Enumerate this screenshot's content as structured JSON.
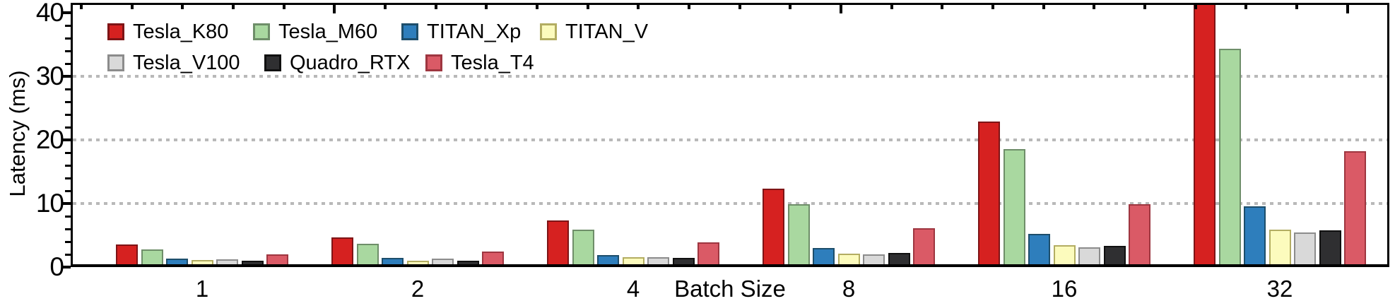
{
  "chart": {
    "ylabel": "Latency (ms)",
    "xlabel": "Batch Size"
  },
  "chart_data": {
    "type": "bar",
    "title": "",
    "xlabel": "Batch Size",
    "ylabel": "Latency (ms)",
    "categories": [
      "1",
      "2",
      "4",
      "8",
      "16",
      "32"
    ],
    "series": [
      {
        "name": "Tesla_K80",
        "fill": "#d62120",
        "edge": "#7e1416",
        "values": [
          3.5,
          4.7,
          7.3,
          12.3,
          22.9,
          42.0
        ]
      },
      {
        "name": "Tesla_M60",
        "fill": "#a9d8a0",
        "edge": "#6e8e69",
        "values": [
          2.8,
          3.7,
          5.9,
          9.9,
          18.5,
          34.3
        ]
      },
      {
        "name": "TITAN_Xp",
        "fill": "#2e7ebc",
        "edge": "#1d4e6b",
        "values": [
          1.3,
          1.4,
          1.9,
          3.0,
          5.2,
          9.6
        ]
      },
      {
        "name": "TITAN_V",
        "fill": "#fcfbbd",
        "edge": "#b3ad62",
        "values": [
          1.1,
          1.0,
          1.5,
          2.1,
          3.4,
          5.9
        ]
      },
      {
        "name": "Tesla_V100",
        "fill": "#d9d9d9",
        "edge": "#8c8c8c",
        "values": [
          1.2,
          1.3,
          1.5,
          2.0,
          3.1,
          5.4
        ]
      },
      {
        "name": "Quadro_RTX",
        "fill": "#2f2f31",
        "edge": "#101010",
        "values": [
          1.0,
          1.0,
          1.4,
          2.2,
          3.3,
          5.8
        ]
      },
      {
        "name": "Tesla_T4",
        "fill": "#da5a66",
        "edge": "#9e3640",
        "values": [
          2.0,
          2.4,
          3.9,
          6.1,
          9.9,
          18.2
        ]
      }
    ],
    "ylim": [
      0,
      41.6
    ],
    "yticks": [
      0,
      10,
      20,
      30,
      40
    ],
    "ytick_labels": [
      "0",
      "10",
      "20",
      "30",
      "40"
    ],
    "minor_ytick_step": 2,
    "gridline_values": [
      10,
      20,
      30
    ],
    "grid_style": "horizontal dotted light-gray at 10/20/30",
    "legend_rows": [
      [
        "Tesla_K80",
        "Tesla_M60",
        "TITAN_Xp",
        "TITAN_V"
      ],
      [
        "Tesla_V100",
        "Quadro_RTX",
        "Tesla_T4"
      ]
    ],
    "legend_position": "inside top-left, no frame",
    "annotations": "Tesla_K80 bar at batch size 32 is clipped by the top of the axes"
  },
  "colors": {
    "background": "#ffffff",
    "axis": "#000000",
    "grid": "#b9b9b9",
    "text": "#000000"
  }
}
